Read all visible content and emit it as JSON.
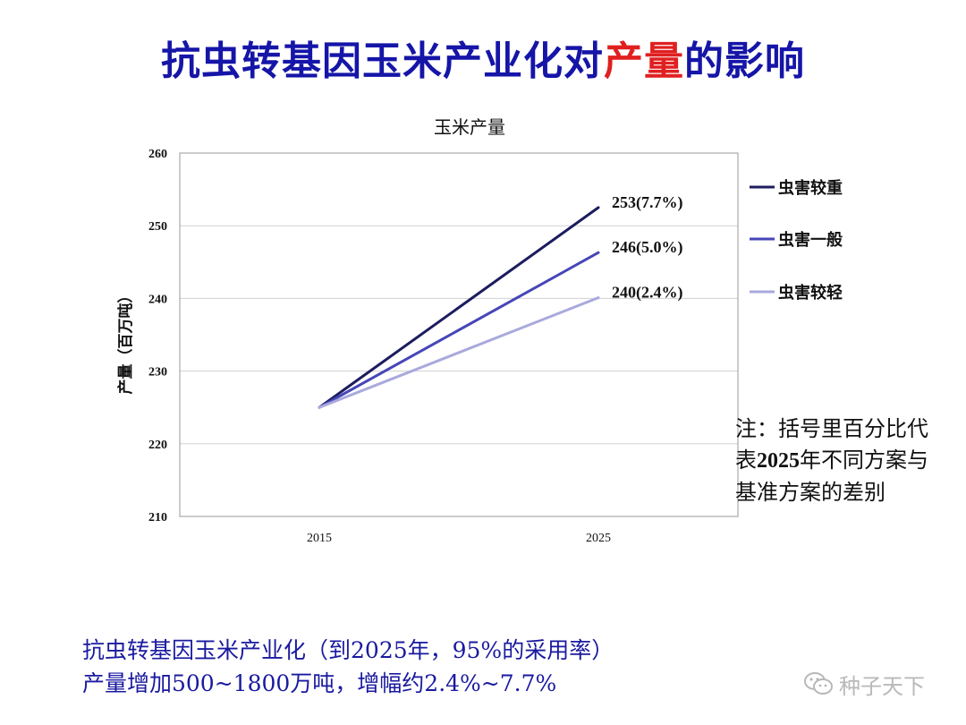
{
  "slide": {
    "title_part1": "抗虫转基因玉米产业化对",
    "title_highlight": "产量",
    "title_part2": "的影响"
  },
  "chart_data": {
    "type": "line",
    "title": "玉米产量",
    "ylabel": "产量（百万吨）",
    "xlabel": "",
    "x": [
      "2015",
      "2025"
    ],
    "ylim": [
      210,
      260
    ],
    "y_ticks": [
      210,
      220,
      230,
      240,
      250,
      260
    ],
    "grid": true,
    "legend_position": "right",
    "series": [
      {
        "name": "虫害较重",
        "values": [
          225,
          252.5
        ],
        "end_label": "253(7.7%)",
        "color": "#1c1c5e"
      },
      {
        "name": "虫害一般",
        "values": [
          225,
          246.3
        ],
        "end_label": "246(5.0%)",
        "color": "#4646b8"
      },
      {
        "name": "虫害较轻",
        "values": [
          225,
          240.1
        ],
        "end_label": "240(2.4%)",
        "color": "#a9a9dd"
      }
    ]
  },
  "note": {
    "line1": "注：括号里百分比代",
    "line2_pre": "表",
    "line2_bold": "2025",
    "line2_post": "年不同方案与",
    "line3": "基准方案的差别"
  },
  "footer": {
    "line1": "抗虫转基因玉米产业化（到2025年，95%的采用率）",
    "line2": "产量增加500~1800万吨，增幅约2.4%~7.7%"
  },
  "watermark": {
    "text": "种子天下",
    "icon": "wechat-icon"
  }
}
